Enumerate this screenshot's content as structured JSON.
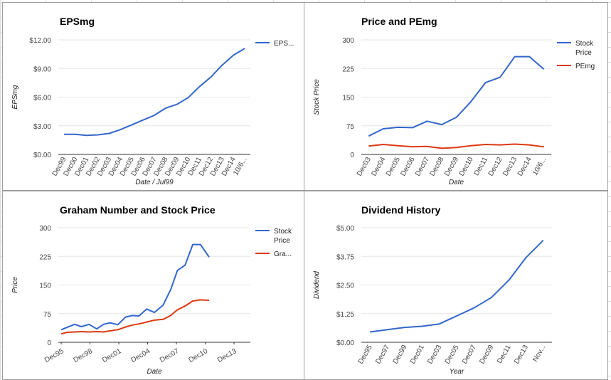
{
  "colors": {
    "blue": "#3366cc",
    "red": "#dc3912",
    "grid": "#e6e6e6",
    "axis": "#333333"
  },
  "chart_data": [
    {
      "id": "eps",
      "type": "line",
      "title": "EPSmg",
      "xlabel": "Date / Jul99",
      "ylabel": "EPSmg",
      "ylim": [
        0,
        12
      ],
      "yticks": [
        "$0.00",
        "$3.00",
        "$6.00",
        "$9.00",
        "$12.00"
      ],
      "ytick_values": [
        0,
        3,
        6,
        9,
        12
      ],
      "categories": [
        "Dec99",
        "Dec00",
        "Dec01",
        "Dec02",
        "Dec03",
        "Dec04",
        "Dec05",
        "Dec06",
        "Dec07",
        "Dec08",
        "Dec09",
        "Dec10",
        "Dec11",
        "Dec12",
        "Dec13",
        "Dec14",
        "10/6..."
      ],
      "grid": true,
      "legend": "right",
      "series": [
        {
          "name": "EPS...",
          "color": "#3366cc",
          "values": [
            2.1,
            2.1,
            2.0,
            2.05,
            2.2,
            2.6,
            3.1,
            3.6,
            4.1,
            4.85,
            5.25,
            5.95,
            7.1,
            8.1,
            9.35,
            10.4,
            11.1
          ]
        }
      ]
    },
    {
      "id": "price_pe",
      "type": "line",
      "title": "Price and PEmg",
      "xlabel": "Date",
      "ylabel": "Stock Price",
      "ylim": [
        0,
        300
      ],
      "yticks": [
        "0",
        "75",
        "150",
        "225",
        "300"
      ],
      "ytick_values": [
        0,
        75,
        150,
        225,
        300
      ],
      "categories": [
        "Dec03",
        "Dec04",
        "Dec05",
        "Dec06",
        "Dec07",
        "Dec08",
        "Dec09",
        "Dec10",
        "Dec11",
        "Dec12",
        "Dec13",
        "Dec14",
        "10/6..."
      ],
      "grid": true,
      "legend": "right",
      "series": [
        {
          "name_lines": [
            "Stock",
            "Price"
          ],
          "color": "#3366cc",
          "values": [
            48,
            67,
            71,
            70,
            87,
            78,
            97,
            138,
            188,
            202,
            256,
            256,
            223
          ]
        },
        {
          "name_lines": [
            "PEmg"
          ],
          "color": "#dc3912",
          "values": [
            22,
            26,
            23,
            20,
            21,
            16,
            18,
            23,
            26,
            25,
            27,
            25,
            20
          ]
        }
      ]
    },
    {
      "id": "graham",
      "type": "line",
      "title": "Graham Number and Stock Price",
      "xlabel": "Date",
      "ylabel": "Price",
      "ylim": [
        0,
        300
      ],
      "yticks": [
        "0",
        "75",
        "150",
        "225",
        "300"
      ],
      "ytick_values": [
        0,
        75,
        150,
        225,
        300
      ],
      "x": [
        1995.9,
        1996.5,
        1997.3,
        1998,
        1998.8,
        1999.6,
        2000.3,
        2001,
        2001.8,
        2002.6,
        2003.3,
        2004,
        2004.8,
        2005.6,
        2006.5,
        2007.3,
        2008,
        2008.8,
        2009.6,
        2010.4,
        2011.3,
        2012.2,
        2013,
        2013.8,
        2014.6,
        2015.3
      ],
      "x_ticks": [
        {
          "label": "Dec95",
          "x": 1995.9
        },
        {
          "label": "Dec98",
          "x": 1998.9
        },
        {
          "label": "Dec01",
          "x": 2001.9
        },
        {
          "label": "Dec04",
          "x": 2004.9
        },
        {
          "label": "Dec07",
          "x": 2007.9
        },
        {
          "label": "Dec10",
          "x": 2010.9
        },
        {
          "label": "Dec13",
          "x": 2013.9
        }
      ],
      "xlim": [
        1995.6,
        2015.6
      ],
      "grid": true,
      "legend": "right",
      "series": [
        {
          "name_lines": [
            "Stock",
            "Price"
          ],
          "color": "#3366cc",
          "values": [
            33,
            39,
            47,
            41,
            47,
            35,
            47,
            51,
            46,
            66,
            70,
            69,
            87,
            78,
            97,
            138,
            188,
            202,
            256,
            256,
            223,
            null,
            null,
            null,
            null,
            null
          ]
        },
        {
          "name_lines": [
            "Gra..."
          ],
          "color": "#dc3912",
          "values": [
            22,
            26,
            27,
            28,
            27,
            28,
            27,
            30,
            33,
            40,
            45,
            48,
            53,
            58,
            60,
            70,
            85,
            95,
            108,
            111,
            110,
            null,
            null,
            null,
            null,
            null
          ]
        }
      ]
    },
    {
      "id": "dividend",
      "type": "line",
      "title": "Dividend History",
      "xlabel": "Year",
      "ylabel": "Dividend",
      "ylim": [
        0,
        5
      ],
      "yticks": [
        "$0.00",
        "$1.25",
        "$2.50",
        "$3.75",
        "$5.00"
      ],
      "ytick_values": [
        0,
        1.25,
        2.5,
        3.75,
        5
      ],
      "categories": [
        "Dec95",
        "Dec97",
        "Dec99",
        "Dec01",
        "Dec03",
        "Dec05",
        "Dec07",
        "Dec09",
        "Dec11",
        "Dec13",
        "Nov..."
      ],
      "grid": true,
      "legend": "none",
      "series": [
        {
          "color": "#3366cc",
          "values": [
            0.45,
            0.55,
            0.65,
            0.7,
            0.8,
            1.15,
            1.5,
            1.95,
            2.7,
            3.7,
            4.45
          ]
        }
      ]
    }
  ]
}
